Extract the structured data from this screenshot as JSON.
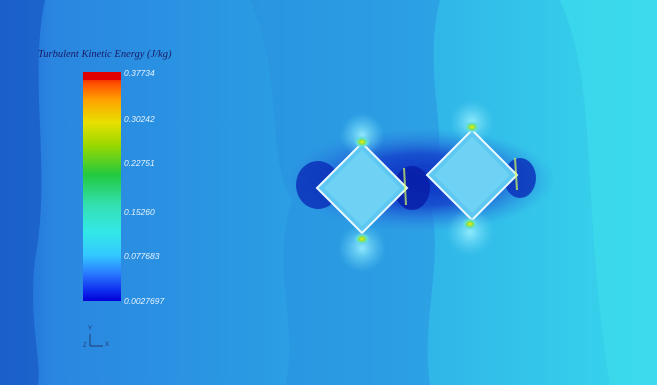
{
  "legend": {
    "title": "Turbulent Kinetic Energy (J/kg)",
    "min": 0.0027697,
    "max": 0.37734,
    "ticks": [
      "0.37734",
      "0.30242",
      "0.22751",
      "0.15260",
      "0.077683",
      "0.0027697"
    ],
    "colors": [
      "#0000e0",
      "#2a6bff",
      "#33d6ff",
      "#33e6d9",
      "#22c940",
      "#b8e000",
      "#f2d200",
      "#ff8a00",
      "#e60000"
    ]
  },
  "axes": {
    "x": "X",
    "y": "Y",
    "z": "Z"
  },
  "field_colors": {
    "background_left": "#1b6fd8",
    "background_mid": "#2a9be3",
    "background_right": "#35d3ea",
    "wake_low": "#1448c9",
    "peak": "#f2e600"
  },
  "objects": [
    {
      "name": "left-square-body",
      "shape": "square rotated 45deg"
    },
    {
      "name": "right-square-body",
      "shape": "square rotated 45deg"
    }
  ]
}
